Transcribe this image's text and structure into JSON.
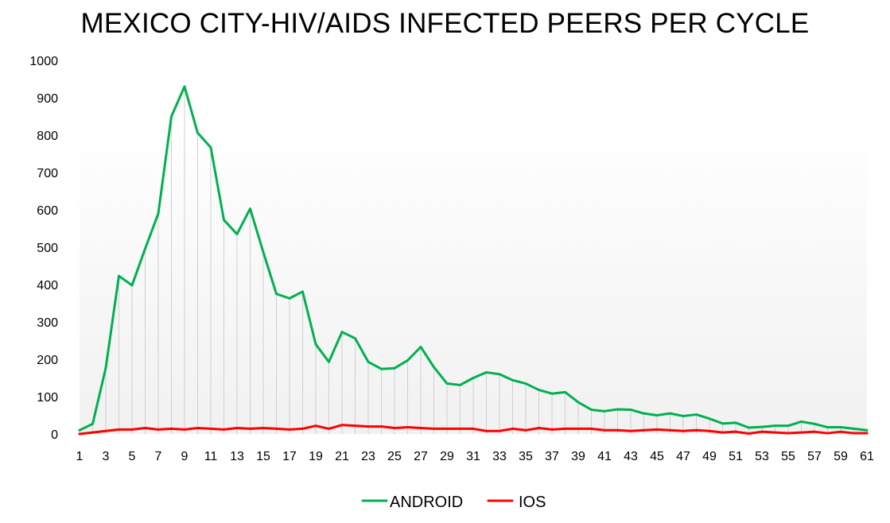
{
  "chart_data": {
    "type": "line",
    "title": "MEXICO CITY-HIV/AIDS INFECTED PEERS PER CYCLE",
    "xlabel": "",
    "ylabel": "",
    "ylim": [
      0,
      1000
    ],
    "y_ticks": [
      0,
      100,
      200,
      300,
      400,
      500,
      600,
      700,
      800,
      900,
      1000
    ],
    "x": [
      1,
      2,
      3,
      4,
      5,
      6,
      7,
      8,
      9,
      10,
      11,
      12,
      13,
      14,
      15,
      16,
      17,
      18,
      19,
      20,
      21,
      22,
      23,
      24,
      25,
      26,
      27,
      28,
      29,
      30,
      31,
      32,
      33,
      34,
      35,
      36,
      37,
      38,
      39,
      40,
      41,
      42,
      43,
      44,
      45,
      46,
      47,
      48,
      49,
      50,
      51,
      52,
      53,
      54,
      55,
      56,
      57,
      58,
      59,
      60,
      61
    ],
    "x_tick_labels": [
      1,
      3,
      5,
      7,
      9,
      11,
      13,
      15,
      17,
      19,
      21,
      23,
      25,
      27,
      29,
      31,
      33,
      35,
      37,
      39,
      41,
      43,
      45,
      47,
      49,
      51,
      53,
      55,
      57,
      59,
      61
    ],
    "grid": "vertical drop lines",
    "legend_position": "bottom",
    "series": [
      {
        "name": "ANDROID",
        "color": "#00b050",
        "values": [
          10,
          27,
          177,
          423,
          398,
          496,
          590,
          850,
          930,
          806,
          767,
          573,
          535,
          603,
          487,
          375,
          363,
          381,
          240,
          193,
          273,
          256,
          193,
          174,
          176,
          197,
          233,
          179,
          135,
          131,
          150,
          165,
          160,
          144,
          135,
          118,
          108,
          112,
          85,
          65,
          61,
          66,
          65,
          55,
          50,
          55,
          48,
          52,
          41,
          28,
          30,
          17,
          19,
          22,
          22,
          33,
          27,
          18,
          18,
          14,
          10
        ]
      },
      {
        "name": "IOS",
        "color": "#ff0000",
        "values": [
          0,
          4,
          8,
          12,
          12,
          16,
          12,
          14,
          12,
          16,
          14,
          12,
          16,
          14,
          16,
          14,
          12,
          14,
          22,
          14,
          24,
          22,
          20,
          20,
          16,
          18,
          16,
          14,
          14,
          14,
          14,
          8,
          8,
          14,
          10,
          16,
          12,
          14,
          14,
          14,
          10,
          10,
          8,
          10,
          12,
          10,
          8,
          10,
          8,
          4,
          6,
          1,
          6,
          4,
          2,
          4,
          6,
          2,
          6,
          2,
          2
        ]
      }
    ]
  }
}
